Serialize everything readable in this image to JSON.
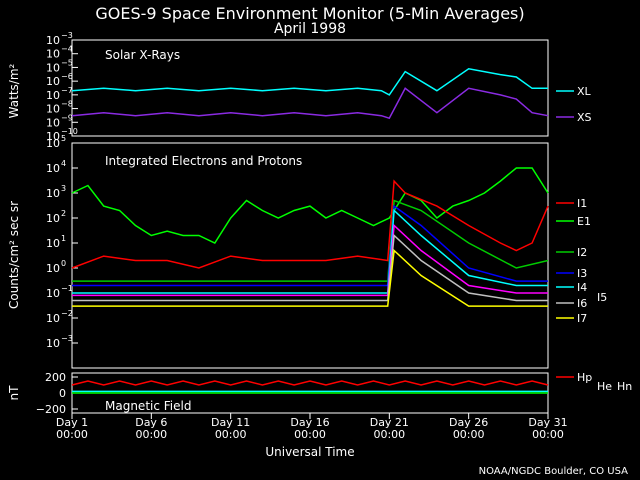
{
  "title": "GOES-9 Space Environment Monitor (5-Min Averages)",
  "subtitle": "April 1998",
  "credit": "NOAA/NGDC Boulder, CO USA",
  "x_axis": {
    "label": "Universal Time",
    "ticks": [
      {
        "day": 1,
        "l1": "Day 1",
        "l2": "00:00"
      },
      {
        "day": 6,
        "l1": "Day 6",
        "l2": "00:00"
      },
      {
        "day": 11,
        "l1": "Day 11",
        "l2": "00:00"
      },
      {
        "day": 16,
        "l1": "Day 16",
        "l2": "00:00"
      },
      {
        "day": 21,
        "l1": "Day 21",
        "l2": "00:00"
      },
      {
        "day": 26,
        "l1": "Day 26",
        "l2": "00:00"
      },
      {
        "day": 31,
        "l1": "Day 31",
        "l2": "00:00"
      }
    ]
  },
  "colors": {
    "XL": "#00ffff",
    "XS": "#8a2be2",
    "I1": "#ff0000",
    "E1": "#00ff00",
    "I2": "#00cc00",
    "I3": "#0000ff",
    "I4": "#00ffff",
    "I5": "#ff00ff",
    "I6": "#c0c0c0",
    "I7": "#ffff00",
    "Hp": "#ff0000",
    "He": "#00ffff",
    "Hn": "#00ff00"
  },
  "chart_data": [
    {
      "type": "line",
      "panel_label": "Solar X-Rays",
      "ylabel": "Watts/m²",
      "yscale": "log",
      "ylim": [
        1e-10,
        0.001
      ],
      "ytick_exps": [
        -3,
        -4,
        -5,
        -6,
        -7,
        -8,
        -9,
        -10
      ],
      "series": [
        {
          "name": "XL",
          "x": [
            1,
            3,
            5,
            7,
            9,
            11,
            13,
            15,
            17,
            19,
            20.5,
            21,
            22,
            24,
            26,
            28,
            29,
            30,
            31
          ],
          "y": [
            2e-07,
            3e-07,
            2e-07,
            3e-07,
            2e-07,
            3e-07,
            2e-07,
            3e-07,
            2e-07,
            3e-07,
            2e-07,
            1e-07,
            5e-06,
            2e-07,
            8e-06,
            3e-06,
            2e-06,
            3e-07,
            3e-07
          ]
        },
        {
          "name": "XS",
          "x": [
            1,
            3,
            5,
            7,
            9,
            11,
            13,
            15,
            17,
            19,
            20.5,
            21,
            22,
            24,
            26,
            28,
            29,
            30,
            31
          ],
          "y": [
            3e-09,
            5e-09,
            3e-09,
            5e-09,
            3e-09,
            5e-09,
            3e-09,
            5e-09,
            3e-09,
            5e-09,
            3e-09,
            2e-09,
            3e-07,
            5e-09,
            3e-07,
            1e-07,
            5e-08,
            5e-09,
            3e-09
          ]
        }
      ]
    },
    {
      "type": "line",
      "panel_label": "Integrated Electrons and Protons",
      "ylabel": "Counts/cm² sec sr",
      "yscale": "log",
      "ylim": [
        0.0001,
        100000
      ],
      "ytick_exps": [
        5,
        4,
        3,
        2,
        1,
        0,
        -1,
        -2,
        -3
      ],
      "series": [
        {
          "name": "E1",
          "x": [
            1,
            2,
            3,
            4,
            5,
            6,
            7,
            8,
            9,
            10,
            11,
            12,
            13,
            14,
            15,
            16,
            17,
            18,
            19,
            20,
            21,
            22,
            23,
            24,
            25,
            26,
            27,
            28,
            29,
            30,
            31
          ],
          "y": [
            1000,
            2000,
            300,
            200,
            50,
            20,
            30,
            20,
            20,
            10,
            100,
            500,
            200,
            100,
            200,
            300,
            100,
            200,
            100,
            50,
            100,
            1000,
            500,
            100,
            300,
            500,
            1000,
            3000,
            10000,
            10000,
            1000
          ]
        },
        {
          "name": "I1",
          "x": [
            1,
            3,
            5,
            7,
            9,
            11,
            13,
            15,
            17,
            19,
            20.9,
            21.3,
            22,
            24,
            26,
            28,
            29,
            30,
            31
          ],
          "y": [
            1,
            3,
            2,
            2,
            1,
            3,
            2,
            2,
            2,
            3,
            2,
            3000,
            1000,
            300,
            50,
            10,
            5,
            10,
            300
          ]
        },
        {
          "name": "I2",
          "x": [
            1,
            5,
            10,
            15,
            20,
            20.9,
            21.3,
            23,
            26,
            29,
            31
          ],
          "y": [
            0.3,
            0.3,
            0.3,
            0.3,
            0.3,
            0.3,
            500,
            200,
            10,
            1,
            2
          ]
        },
        {
          "name": "I3",
          "x": [
            1,
            5,
            10,
            15,
            20,
            20.9,
            21.3,
            23,
            26,
            29,
            31
          ],
          "y": [
            0.2,
            0.2,
            0.2,
            0.2,
            0.2,
            0.2,
            300,
            50,
            1,
            0.3,
            0.3
          ]
        },
        {
          "name": "I4",
          "x": [
            1,
            5,
            10,
            15,
            20,
            20.9,
            21.3,
            23,
            26,
            29,
            31
          ],
          "y": [
            0.1,
            0.1,
            0.1,
            0.1,
            0.1,
            0.1,
            200,
            20,
            0.5,
            0.2,
            0.2
          ]
        },
        {
          "name": "I5",
          "x": [
            1,
            5,
            10,
            15,
            20,
            20.9,
            21.3,
            23,
            26,
            29,
            31
          ],
          "y": [
            0.08,
            0.08,
            0.08,
            0.08,
            0.08,
            0.08,
            50,
            5,
            0.2,
            0.1,
            0.1
          ]
        },
        {
          "name": "I6",
          "x": [
            1,
            5,
            10,
            15,
            20,
            20.9,
            21.3,
            23,
            26,
            29,
            31
          ],
          "y": [
            0.05,
            0.05,
            0.05,
            0.05,
            0.05,
            0.05,
            20,
            2,
            0.1,
            0.05,
            0.05
          ]
        },
        {
          "name": "I7",
          "x": [
            1,
            5,
            10,
            15,
            20,
            20.9,
            21.3,
            23,
            26,
            29,
            31
          ],
          "y": [
            0.03,
            0.03,
            0.03,
            0.03,
            0.03,
            0.03,
            5,
            0.5,
            0.03,
            0.03,
            0.03
          ]
        }
      ]
    },
    {
      "type": "line",
      "panel_label": "Magnetic Field",
      "ylabel": "nT",
      "ylim": [
        -250,
        250
      ],
      "yticks": [
        200,
        0,
        -200
      ],
      "series": [
        {
          "name": "Hp",
          "x": [
            1,
            2,
            3,
            4,
            5,
            6,
            7,
            8,
            9,
            10,
            11,
            12,
            13,
            14,
            15,
            16,
            17,
            18,
            19,
            20,
            21,
            22,
            23,
            24,
            25,
            26,
            27,
            28,
            29,
            30,
            31
          ],
          "y": [
            100,
            150,
            100,
            150,
            100,
            150,
            100,
            150,
            100,
            150,
            100,
            150,
            100,
            150,
            100,
            150,
            100,
            150,
            100,
            150,
            100,
            150,
            100,
            150,
            100,
            150,
            100,
            150,
            100,
            150,
            100
          ]
        },
        {
          "name": "He",
          "x": [
            1,
            31
          ],
          "y": [
            20,
            20
          ]
        },
        {
          "name": "Hn",
          "x": [
            1,
            31
          ],
          "y": [
            0,
            0
          ]
        }
      ]
    }
  ]
}
